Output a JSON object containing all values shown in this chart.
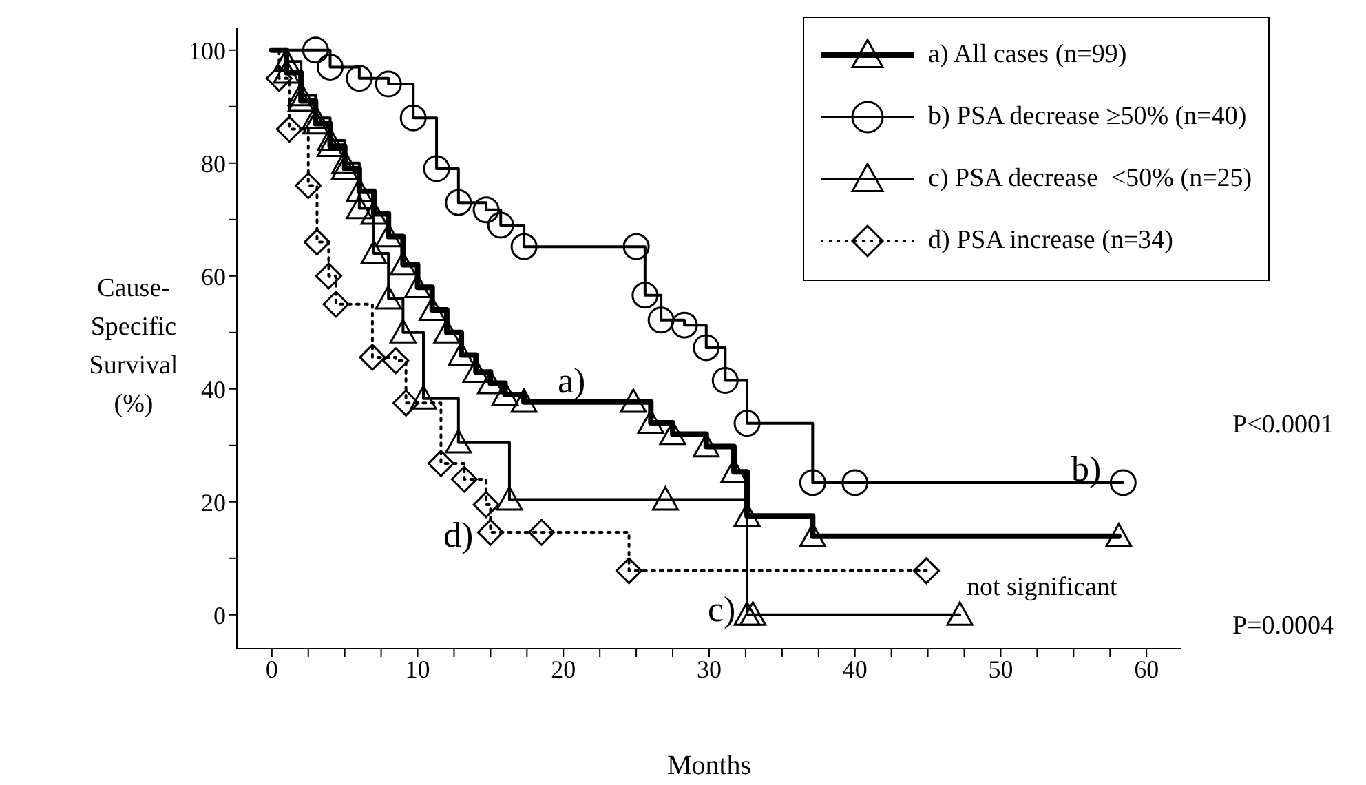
{
  "chart_data": {
    "type": "step",
    "xlabel": "Months",
    "ylabel": "Cause-Specific Survival (%)",
    "legend": "top right",
    "xlim": [
      -2.4,
      62.4
    ],
    "ylim": [
      -6,
      104
    ],
    "xticks": [
      0,
      {
        "value": 2.5,
        "label": null
      },
      {
        "value": 5,
        "label": null
      },
      {
        "value": 7.5,
        "label": null
      },
      10,
      {
        "value": 12.5,
        "label": null
      },
      {
        "value": 15,
        "label": null
      },
      {
        "value": 17.5,
        "label": null
      },
      20,
      {
        "value": 22.5,
        "label": null
      },
      {
        "value": 25,
        "label": null
      },
      {
        "value": 27.5,
        "label": null
      },
      30,
      {
        "value": 32.5,
        "label": null
      },
      {
        "value": 35,
        "label": null
      },
      {
        "value": 37.5,
        "label": null
      },
      40,
      {
        "value": 42.5,
        "label": null
      },
      {
        "value": 45,
        "label": null
      },
      {
        "value": 47.5,
        "label": null
      },
      50,
      {
        "value": 52.5,
        "label": null
      },
      {
        "value": 55,
        "label": null
      },
      {
        "value": 57.5,
        "label": null
      },
      60
    ],
    "yticks": [
      0,
      {
        "value": 10,
        "label": null
      },
      20,
      {
        "value": 30,
        "label": null
      },
      40,
      {
        "value": 50,
        "label": null
      },
      60,
      {
        "value": 70,
        "label": null
      },
      80,
      {
        "value": 90,
        "label": null
      },
      100
    ],
    "series": [
      {
        "name": "a) All cases (n=99)",
        "color": "#000000",
        "marker": "triangle",
        "line_style": "solid",
        "x": [
          0,
          1,
          2,
          3,
          4,
          5,
          6,
          7,
          8,
          9,
          10,
          11,
          12,
          13,
          14,
          15,
          16,
          17.3,
          24.8,
          26,
          27.5,
          29.8,
          31.7,
          32.6,
          37.1,
          58.1
        ],
        "values": [
          100,
          96,
          91,
          87,
          83,
          79,
          75,
          71,
          67,
          62,
          58,
          54,
          50,
          46,
          43,
          41,
          39,
          37.7,
          37.7,
          34,
          32,
          29.8,
          25.3,
          17.5,
          13.9,
          13.9
        ]
      },
      {
        "name": "b) PSA decrease ≥50% (n=40)",
        "color": "#000000",
        "marker": "circle",
        "line_style": "solid",
        "x": [
          0,
          3,
          4,
          6,
          8,
          9.7,
          11.3,
          12.8,
          14.7,
          15.7,
          17.3,
          25,
          25.6,
          26.7,
          28.3,
          29.8,
          31.1,
          32.6,
          37.1,
          40,
          58.4
        ],
        "values": [
          100,
          100,
          97,
          95,
          94,
          88,
          79,
          73,
          71.7,
          69,
          65.2,
          65.2,
          56.6,
          52.2,
          51.3,
          47.3,
          41.5,
          33.9,
          23.4,
          23.4,
          23.4
        ]
      },
      {
        "name": "c) PSA decrease  <50% (n=25)",
        "color": "#000000",
        "marker": "triangle",
        "line_style": "solid",
        "x": [
          0,
          1,
          2,
          3,
          4,
          5,
          6,
          7,
          8,
          9,
          10.4,
          12.8,
          16.3,
          27,
          32.6,
          33,
          47.2
        ],
        "values": [
          100,
          98,
          92,
          88,
          84,
          80,
          72,
          64,
          56,
          50,
          38.3,
          30.5,
          20.4,
          20.4,
          0,
          0,
          0
        ]
      },
      {
        "name": "d) PSA increase (n=34)",
        "color": "#000000",
        "marker": "diamond",
        "line_style": "dotted",
        "x": [
          0,
          0.5,
          1.2,
          2.5,
          3.1,
          3.9,
          4.4,
          6.9,
          8.5,
          9.2,
          11.6,
          13.2,
          14.7,
          15,
          18.5,
          24.5,
          44.9
        ],
        "values": [
          100,
          95,
          86,
          76,
          66,
          60,
          55,
          45.6,
          45,
          37.5,
          26.8,
          24,
          19.5,
          14.6,
          14.6,
          7.8,
          7.8
        ]
      }
    ],
    "annotations": [
      "a)",
      "b)",
      "c)",
      "d)",
      "P<0.0001",
      "P=0.0004",
      "not significant"
    ]
  }
}
